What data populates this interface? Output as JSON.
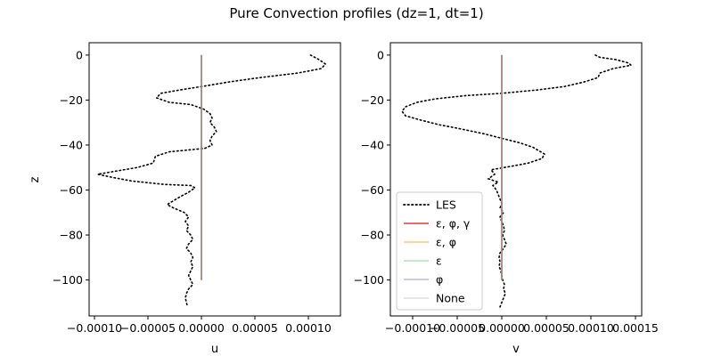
{
  "chart_data": {
    "title": "Pure Convection profiles (dz=1, dt=1)",
    "panels": [
      {
        "type": "line",
        "xlabel": "u",
        "ylabel": "z",
        "xlim": [
          -0.000105,
          0.00013
        ],
        "ylim": [
          -116,
          5.5
        ],
        "xticks": [
          -0.0001,
          -5e-05,
          0.0,
          5e-05,
          0.0001
        ],
        "xtick_labels": [
          "−0.00010",
          "−0.00005",
          "0.00000",
          "0.00005",
          "0.00010"
        ],
        "yticks": [
          0,
          -20,
          -40,
          -60,
          -80,
          -100
        ],
        "ytick_labels": [
          "0",
          "−20",
          "−40",
          "−60",
          "−80",
          "−100"
        ],
        "series": [
          {
            "name": "LES",
            "color": "#000000",
            "dash": "dotted",
            "points": [
              [
                0.000102,
                0
              ],
              [
                0.00011,
                -2
              ],
              [
                0.000116,
                -4
              ],
              [
                0.000112,
                -6
              ],
              [
                9e-05,
                -8
              ],
              [
                5.5e-05,
                -10
              ],
              [
                2.5e-05,
                -12
              ],
              [
                0.0,
                -14
              ],
              [
                -2e-05,
                -15.5
              ],
              [
                -3.8e-05,
                -17
              ],
              [
                -4.2e-05,
                -19
              ],
              [
                -3e-05,
                -21
              ],
              [
                -1e-05,
                -22
              ],
              [
                2e-06,
                -24
              ],
              [
                8e-06,
                -26
              ],
              [
                1e-05,
                -28
              ],
              [
                8e-06,
                -30
              ],
              [
                1.2e-05,
                -32
              ],
              [
                1.4e-05,
                -34
              ],
              [
                1e-05,
                -36
              ],
              [
                8e-06,
                -38
              ],
              [
                1e-05,
                -40
              ],
              [
                3e-06,
                -41.5
              ],
              [
                -3e-05,
                -43
              ],
              [
                -4.3e-05,
                -45
              ],
              [
                -4.5e-05,
                -48
              ],
              [
                -6e-05,
                -50
              ],
              [
                -8.5e-05,
                -52
              ],
              [
                -9.7e-05,
                -53
              ],
              [
                -8.2e-05,
                -54.5
              ],
              [
                -6.5e-05,
                -56
              ],
              [
                -3.5e-05,
                -57.5
              ],
              [
                -1e-05,
                -58
              ],
              [
                -6e-06,
                -59
              ],
              [
                -1.2e-05,
                -61
              ],
              [
                -2e-05,
                -63
              ],
              [
                -2.7e-05,
                -65
              ],
              [
                -3.2e-05,
                -66.5
              ],
              [
                -2.6e-05,
                -68
              ],
              [
                -1.6e-05,
                -70
              ],
              [
                -1.2e-05,
                -72
              ],
              [
                -1.5e-05,
                -74
              ],
              [
                -1.2e-05,
                -76
              ],
              [
                -1.4e-05,
                -78
              ],
              [
                -1e-05,
                -80
              ],
              [
                -8e-06,
                -82
              ],
              [
                -1.2e-05,
                -84
              ],
              [
                -1.4e-05,
                -86
              ],
              [
                -1e-05,
                -88
              ],
              [
                -8e-06,
                -90
              ],
              [
                -1e-05,
                -92
              ],
              [
                -8e-06,
                -94
              ],
              [
                -1e-05,
                -96
              ],
              [
                -1.2e-05,
                -98
              ],
              [
                -1e-05,
                -100
              ],
              [
                -8e-06,
                -102
              ],
              [
                -1.2e-05,
                -104
              ],
              [
                -1.4e-05,
                -106
              ],
              [
                -1.5e-05,
                -108
              ],
              [
                -1.4e-05,
                -110
              ],
              [
                -1.3e-05,
                -112
              ]
            ]
          },
          {
            "name": "ε, φ, γ",
            "color": "#d62728",
            "dash": "solid",
            "opacity": 0.9,
            "points": [
              [
                0,
                0
              ],
              [
                0,
                -100
              ]
            ]
          },
          {
            "name": "ε, φ",
            "color": "#ff9f1c",
            "dash": "solid",
            "opacity": 0.6,
            "points": [
              [
                0,
                0
              ],
              [
                0,
                -100
              ]
            ]
          },
          {
            "name": "ε",
            "color": "#2ca02c",
            "dash": "solid",
            "opacity": 0.35,
            "points": [
              [
                0,
                0
              ],
              [
                0,
                -100
              ]
            ]
          },
          {
            "name": "φ",
            "color": "#6a5acd",
            "dash": "solid",
            "opacity": 0.45,
            "points": [
              [
                0,
                0
              ],
              [
                0,
                -100
              ]
            ]
          },
          {
            "name": "None",
            "color": "#b4b4b4",
            "dash": "solid",
            "opacity": 0.45,
            "points": [
              [
                0,
                0
              ],
              [
                0,
                -100
              ]
            ]
          }
        ]
      },
      {
        "type": "line",
        "xlabel": "v",
        "ylabel": "",
        "xlim": [
          -0.000125,
          0.000157
        ],
        "ylim": [
          -116,
          5.5
        ],
        "xticks": [
          -0.0001,
          -5e-05,
          0.0,
          5e-05,
          0.0001,
          0.00015
        ],
        "xtick_labels": [
          "−0.00010",
          "−0.00005",
          "0.00000",
          "0.00005",
          "0.00010",
          "0.00015"
        ],
        "yticks": [
          0,
          -20,
          -40,
          -60,
          -80,
          -100
        ],
        "ytick_labels": [
          "0",
          "−20",
          "−40",
          "−60",
          "−80",
          "−100"
        ],
        "legend": {
          "position": "lower-left",
          "entries": [
            "LES",
            "ε, φ, γ",
            "ε, φ",
            "ε",
            "φ",
            "None"
          ]
        },
        "series": [
          {
            "name": "LES",
            "color": "#000000",
            "dash": "dotted",
            "points": [
              [
                0.000105,
                0
              ],
              [
                0.00011,
                -1
              ],
              [
                0.000128,
                -2
              ],
              [
                0.000142,
                -3.5
              ],
              [
                0.000145,
                -4.5
              ],
              [
                0.000125,
                -6
              ],
              [
                0.00011,
                -8
              ],
              [
                0.000108,
                -10
              ],
              [
                9.2e-05,
                -12
              ],
              [
                7e-05,
                -14
              ],
              [
                4e-05,
                -15.5
              ],
              [
                0.0,
                -17
              ],
              [
                -4e-05,
                -18
              ],
              [
                -7.5e-05,
                -19.5
              ],
              [
                -9.5e-05,
                -21
              ],
              [
                -0.000108,
                -23
              ],
              [
                -0.000112,
                -25
              ],
              [
                -0.000108,
                -27
              ],
              [
                -9e-05,
                -29
              ],
              [
                -7e-05,
                -31
              ],
              [
                -5e-05,
                -32.5
              ],
              [
                -2e-05,
                -35
              ],
              [
                0.0,
                -37
              ],
              [
                2e-05,
                -39
              ],
              [
                3.5e-05,
                -41
              ],
              [
                4.8e-05,
                -44
              ],
              [
                4.5e-05,
                -46
              ],
              [
                3e-05,
                -48
              ],
              [
                1e-05,
                -49.5
              ],
              [
                -1.2e-05,
                -51
              ],
              [
                -8e-06,
                -53
              ],
              [
                -1.5e-05,
                -55
              ],
              [
                -4e-06,
                -56.5
              ],
              [
                -1e-05,
                -58
              ],
              [
                -6e-06,
                -60
              ],
              [
                -4e-06,
                -62
              ],
              [
                -2e-06,
                -64
              ],
              [
                0.0,
                -66
              ],
              [
                -2e-06,
                -68
              ],
              [
                2e-06,
                -70
              ],
              [
                -2e-06,
                -72
              ],
              [
                0.0,
                -74
              ],
              [
                2e-06,
                -76
              ],
              [
                3e-06,
                -78
              ],
              [
                1e-06,
                -80
              ],
              [
                3e-06,
                -82
              ],
              [
                5e-06,
                -84
              ],
              [
                2e-06,
                -86
              ],
              [
                -2e-06,
                -88
              ],
              [
                -3e-06,
                -90
              ],
              [
                -2e-06,
                -92
              ],
              [
                -3e-06,
                -94
              ],
              [
                -1e-06,
                -96
              ],
              [
                0.0,
                -98
              ],
              [
                1e-06,
                -100
              ],
              [
                3e-06,
                -102
              ],
              [
                2e-06,
                -104
              ],
              [
                4e-06,
                -106
              ],
              [
                2e-06,
                -108
              ],
              [
                0.0,
                -110
              ],
              [
                -2e-06,
                -112
              ]
            ]
          },
          {
            "name": "ε, φ, γ",
            "color": "#d62728",
            "dash": "solid",
            "opacity": 0.9,
            "points": [
              [
                0,
                0
              ],
              [
                0,
                -100
              ]
            ]
          },
          {
            "name": "ε, φ",
            "color": "#ff9f1c",
            "dash": "solid",
            "opacity": 0.6,
            "points": [
              [
                0,
                0
              ],
              [
                0,
                -100
              ]
            ]
          },
          {
            "name": "ε",
            "color": "#2ca02c",
            "dash": "solid",
            "opacity": 0.35,
            "points": [
              [
                0,
                0
              ],
              [
                0,
                -100
              ]
            ]
          },
          {
            "name": "φ",
            "color": "#6a5acd",
            "dash": "solid",
            "opacity": 0.45,
            "points": [
              [
                0,
                0
              ],
              [
                0,
                -100
              ]
            ]
          },
          {
            "name": "None",
            "color": "#b4b4b4",
            "dash": "solid",
            "opacity": 0.45,
            "points": [
              [
                0,
                0
              ],
              [
                0,
                -100
              ]
            ]
          }
        ]
      }
    ]
  }
}
